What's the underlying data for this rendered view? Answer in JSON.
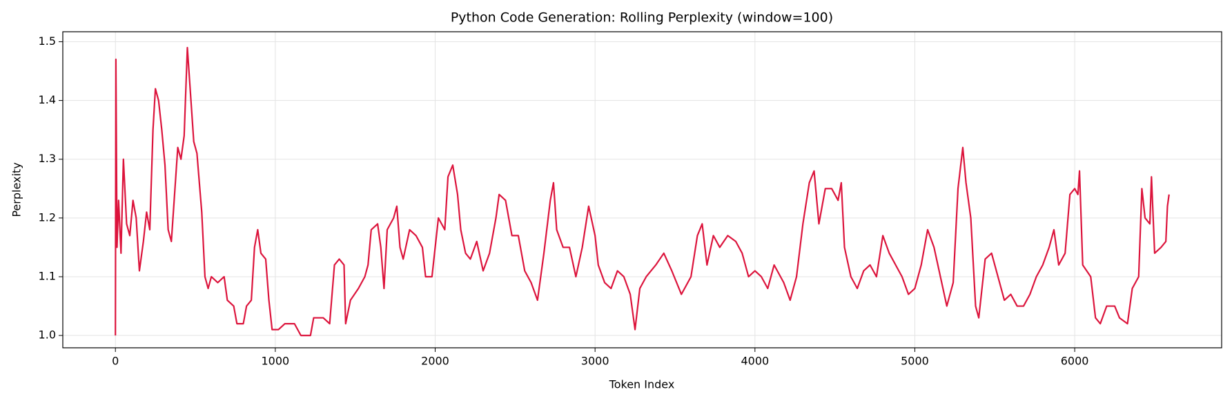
{
  "chart_data": {
    "type": "line",
    "title": "Python Code Generation: Rolling Perplexity (window=100)",
    "x_label": "Token Index",
    "y_label": "Perplexity",
    "x": [
      0,
      3,
      10,
      20,
      35,
      50,
      70,
      90,
      110,
      130,
      150,
      175,
      195,
      215,
      235,
      250,
      270,
      290,
      310,
      330,
      350,
      370,
      390,
      410,
      430,
      450,
      470,
      490,
      510,
      540,
      560,
      580,
      600,
      640,
      680,
      700,
      740,
      760,
      800,
      820,
      850,
      870,
      890,
      910,
      940,
      960,
      980,
      1020,
      1060,
      1120,
      1160,
      1220,
      1240,
      1300,
      1340,
      1370,
      1400,
      1430,
      1440,
      1470,
      1520,
      1560,
      1580,
      1600,
      1640,
      1660,
      1680,
      1700,
      1740,
      1760,
      1780,
      1800,
      1840,
      1880,
      1920,
      1940,
      1980,
      2020,
      2060,
      2080,
      2110,
      2140,
      2160,
      2190,
      2220,
      2260,
      2300,
      2340,
      2380,
      2400,
      2440,
      2480,
      2520,
      2560,
      2600,
      2640,
      2680,
      2720,
      2740,
      2760,
      2800,
      2840,
      2880,
      2920,
      2960,
      3000,
      3020,
      3060,
      3100,
      3140,
      3180,
      3220,
      3250,
      3280,
      3320,
      3380,
      3430,
      3480,
      3540,
      3600,
      3640,
      3670,
      3700,
      3740,
      3780,
      3830,
      3880,
      3920,
      3960,
      4000,
      4040,
      4080,
      4120,
      4180,
      4220,
      4260,
      4300,
      4340,
      4370,
      4400,
      4440,
      4480,
      4520,
      4540,
      4560,
      4600,
      4640,
      4680,
      4720,
      4760,
      4800,
      4840,
      4880,
      4920,
      4960,
      5000,
      5040,
      5080,
      5120,
      5160,
      5200,
      5240,
      5270,
      5300,
      5320,
      5350,
      5380,
      5400,
      5440,
      5480,
      5520,
      5560,
      5600,
      5640,
      5680,
      5720,
      5760,
      5800,
      5840,
      5870,
      5900,
      5940,
      5970,
      6000,
      6020,
      6030,
      6050,
      6100,
      6130,
      6160,
      6200,
      6250,
      6280,
      6330,
      6360,
      6400,
      6420,
      6440,
      6470,
      6480,
      6500,
      6540,
      6570,
      6580,
      6590
    ],
    "values": [
      1.0,
      1.47,
      1.15,
      1.23,
      1.14,
      1.3,
      1.19,
      1.17,
      1.23,
      1.2,
      1.11,
      1.16,
      1.21,
      1.18,
      1.35,
      1.42,
      1.4,
      1.35,
      1.29,
      1.18,
      1.16,
      1.24,
      1.32,
      1.3,
      1.34,
      1.49,
      1.41,
      1.33,
      1.31,
      1.21,
      1.1,
      1.08,
      1.1,
      1.09,
      1.1,
      1.06,
      1.05,
      1.02,
      1.02,
      1.05,
      1.06,
      1.15,
      1.18,
      1.14,
      1.13,
      1.06,
      1.01,
      1.01,
      1.02,
      1.02,
      1.0,
      1.0,
      1.03,
      1.03,
      1.02,
      1.12,
      1.13,
      1.12,
      1.02,
      1.06,
      1.08,
      1.1,
      1.12,
      1.18,
      1.19,
      1.15,
      1.08,
      1.18,
      1.2,
      1.22,
      1.15,
      1.13,
      1.18,
      1.17,
      1.15,
      1.1,
      1.1,
      1.2,
      1.18,
      1.27,
      1.29,
      1.24,
      1.18,
      1.14,
      1.13,
      1.16,
      1.11,
      1.14,
      1.2,
      1.24,
      1.23,
      1.17,
      1.17,
      1.11,
      1.09,
      1.06,
      1.14,
      1.23,
      1.26,
      1.18,
      1.15,
      1.15,
      1.1,
      1.15,
      1.22,
      1.17,
      1.12,
      1.09,
      1.08,
      1.11,
      1.1,
      1.07,
      1.01,
      1.08,
      1.1,
      1.12,
      1.14,
      1.11,
      1.07,
      1.1,
      1.17,
      1.19,
      1.12,
      1.17,
      1.15,
      1.17,
      1.16,
      1.14,
      1.1,
      1.11,
      1.1,
      1.08,
      1.12,
      1.09,
      1.06,
      1.1,
      1.19,
      1.26,
      1.28,
      1.19,
      1.25,
      1.25,
      1.23,
      1.26,
      1.15,
      1.1,
      1.08,
      1.11,
      1.12,
      1.1,
      1.17,
      1.14,
      1.12,
      1.1,
      1.07,
      1.08,
      1.12,
      1.18,
      1.15,
      1.1,
      1.05,
      1.09,
      1.25,
      1.32,
      1.26,
      1.2,
      1.05,
      1.03,
      1.13,
      1.14,
      1.1,
      1.06,
      1.07,
      1.05,
      1.05,
      1.07,
      1.1,
      1.12,
      1.15,
      1.18,
      1.12,
      1.14,
      1.24,
      1.25,
      1.24,
      1.28,
      1.12,
      1.1,
      1.03,
      1.02,
      1.05,
      1.05,
      1.03,
      1.02,
      1.08,
      1.1,
      1.25,
      1.2,
      1.19,
      1.27,
      1.14,
      1.15,
      1.16,
      1.22,
      1.24
    ],
    "color": "#dc143c",
    "xlim": [
      -329,
      6919
    ],
    "ylim": [
      0.979,
      1.517
    ],
    "xticks": [
      0,
      1000,
      2000,
      3000,
      4000,
      5000,
      6000
    ],
    "yticks": [
      {
        "value": 1.0,
        "label": "1.0"
      },
      1.1,
      1.2,
      1.3,
      1.4,
      1.5
    ],
    "grid": true
  }
}
